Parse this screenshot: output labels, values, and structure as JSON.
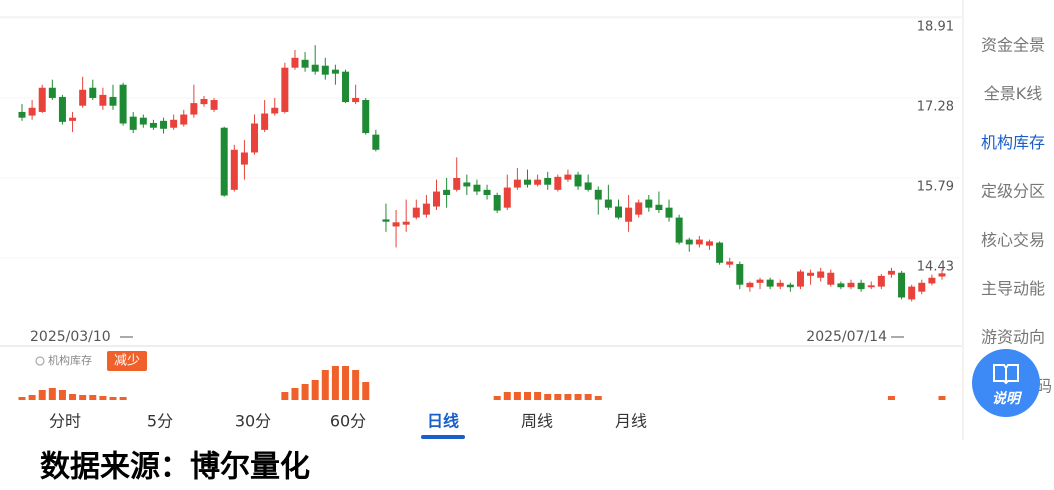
{
  "chart_data": {
    "type": "candlestick",
    "log_scale": true,
    "ylim": [
      13.08,
      18.91
    ],
    "yticks": [
      18.91,
      17.28,
      15.79,
      14.43
    ],
    "x_labels": [
      "2025/03/10",
      "2025/07/14"
    ],
    "up_color": "#e8423a",
    "down_color": "#1f8a34",
    "open": [
      17.01,
      16.94,
      17.01,
      17.48,
      17.3,
      16.84,
      17.13,
      17.48,
      17.13,
      17.3,
      17.54,
      16.92,
      16.9,
      16.8,
      16.84,
      16.71,
      16.77,
      16.96,
      17.16,
      17.05,
      16.71,
      15.58,
      16.03,
      16.25,
      16.67,
      16.98,
      17.01,
      17.88,
      18.04,
      17.94,
      17.92,
      17.84,
      17.8,
      17.2,
      17.24,
      16.58,
      15.07,
      14.95,
      14.98,
      15.1,
      15.15,
      15.29,
      15.58,
      15.58,
      15.71,
      15.67,
      15.58,
      15.49,
      15.27,
      15.62,
      15.76,
      15.67,
      15.79,
      15.58,
      15.76,
      15.85,
      15.71,
      15.58,
      15.41,
      15.29,
      15.03,
      15.15,
      15.41,
      15.32,
      15.27,
      15.1,
      14.73,
      14.65,
      14.63,
      14.68,
      14.32,
      14.33,
      13.96,
      14.03,
      14.08,
      13.97,
      14.0,
      13.97,
      14.14,
      14.11,
      14.0,
      14.02,
      13.96,
      14.03,
      13.96,
      13.97,
      14.16,
      14.19,
      13.77,
      13.89,
      14.02,
      14.13
    ],
    "high": [
      17.16,
      17.24,
      17.54,
      17.64,
      17.34,
      17.01,
      17.7,
      17.64,
      17.48,
      17.54,
      17.58,
      17.01,
      16.96,
      16.86,
      16.9,
      16.96,
      17.05,
      17.54,
      17.32,
      17.28,
      16.73,
      16.39,
      16.48,
      16.96,
      17.24,
      17.28,
      17.98,
      18.24,
      18.2,
      18.34,
      18.08,
      17.94,
      17.84,
      17.54,
      17.28,
      16.67,
      15.34,
      15.23,
      15.41,
      15.41,
      15.49,
      15.76,
      15.79,
      16.16,
      15.85,
      15.76,
      15.67,
      15.53,
      15.85,
      15.97,
      15.94,
      15.85,
      15.9,
      15.85,
      15.94,
      15.9,
      15.85,
      15.64,
      15.67,
      15.41,
      15.49,
      15.41,
      15.49,
      15.55,
      15.41,
      15.15,
      14.76,
      14.79,
      14.73,
      14.7,
      14.43,
      14.37,
      14.05,
      14.11,
      14.11,
      14.08,
      14.03,
      14.24,
      14.24,
      14.27,
      14.24,
      14.05,
      14.08,
      14.08,
      14.05,
      14.17,
      14.27,
      14.22,
      14.0,
      14.08,
      14.16,
      14.24
    ],
    "low": [
      16.84,
      16.86,
      16.99,
      17.24,
      16.77,
      16.63,
      17.09,
      17.24,
      17.05,
      17.05,
      16.75,
      16.61,
      16.71,
      16.67,
      16.6,
      16.67,
      16.73,
      16.9,
      17.11,
      17.01,
      15.46,
      15.55,
      15.76,
      16.21,
      16.63,
      16.94,
      16.98,
      17.84,
      17.8,
      17.74,
      17.64,
      17.54,
      17.18,
      17.16,
      16.58,
      16.27,
      14.86,
      14.6,
      14.86,
      15.07,
      15.1,
      15.23,
      15.27,
      15.55,
      15.49,
      15.49,
      15.41,
      15.18,
      15.23,
      15.58,
      15.62,
      15.64,
      15.58,
      15.55,
      15.72,
      15.58,
      15.55,
      15.15,
      15.23,
      15.07,
      14.86,
      15.1,
      15.2,
      15.18,
      15.03,
      14.65,
      14.53,
      14.6,
      14.56,
      14.32,
      14.27,
      13.93,
      13.89,
      13.93,
      13.93,
      13.93,
      13.89,
      13.93,
      14.0,
      14.05,
      13.97,
      13.93,
      13.93,
      13.89,
      13.93,
      13.93,
      14.11,
      13.77,
      13.74,
      13.85,
      13.99,
      14.08
    ],
    "close": [
      16.9,
      17.09,
      17.48,
      17.28,
      16.82,
      16.9,
      17.44,
      17.28,
      17.34,
      17.13,
      16.79,
      16.67,
      16.77,
      16.71,
      16.69,
      16.86,
      16.96,
      17.18,
      17.26,
      17.24,
      15.48,
      16.3,
      16.25,
      16.79,
      16.98,
      17.09,
      17.88,
      18.08,
      17.88,
      17.8,
      17.74,
      17.76,
      17.2,
      17.28,
      16.61,
      16.3,
      15.03,
      15.02,
      15.03,
      15.27,
      15.34,
      15.55,
      15.49,
      15.79,
      15.64,
      15.55,
      15.49,
      15.22,
      15.62,
      15.76,
      15.67,
      15.76,
      15.67,
      15.81,
      15.85,
      15.64,
      15.58,
      15.41,
      15.27,
      15.1,
      15.27,
      15.36,
      15.27,
      15.23,
      15.1,
      14.68,
      14.65,
      14.73,
      14.7,
      14.35,
      14.37,
      14.0,
      14.03,
      14.08,
      13.97,
      14.03,
      13.96,
      14.21,
      14.19,
      14.21,
      14.19,
      13.96,
      14.03,
      13.93,
      13.99,
      14.14,
      14.22,
      13.8,
      13.97,
      14.03,
      14.11,
      14.18
    ]
  },
  "inventory": {
    "label": "机构库存",
    "badge": "减少",
    "color": "#f0602a",
    "ylim": [
      0,
      35
    ],
    "values": [
      3,
      5,
      10,
      12,
      10,
      6,
      5,
      5,
      4,
      3,
      3,
      null,
      null,
      null,
      null,
      null,
      null,
      null,
      null,
      null,
      null,
      null,
      null,
      null,
      null,
      null,
      8,
      12,
      16,
      20,
      30,
      34,
      34,
      30,
      18,
      null,
      null,
      null,
      null,
      null,
      null,
      null,
      null,
      null,
      null,
      null,
      null,
      4,
      8,
      8,
      8,
      8,
      6,
      6,
      6,
      6,
      6,
      4,
      null,
      null,
      null,
      null,
      null,
      null,
      null,
      null,
      null,
      null,
      null,
      null,
      null,
      null,
      null,
      null,
      null,
      null,
      null,
      null,
      null,
      null,
      null,
      null,
      null,
      null,
      null,
      null,
      4,
      null,
      null,
      null,
      null,
      4
    ]
  },
  "tabs": {
    "items": [
      "分时",
      "5分",
      "30分",
      "60分",
      "日线",
      "周线",
      "月线"
    ],
    "active": 4
  },
  "side_menu": {
    "items": [
      "资金全景",
      "全景K线",
      "机构库存",
      "定级分区",
      "核心交易",
      "主导动能",
      "游资动向",
      "码"
    ],
    "active": 2
  },
  "help_button": "说明",
  "footer": "数据来源：博尔量化"
}
